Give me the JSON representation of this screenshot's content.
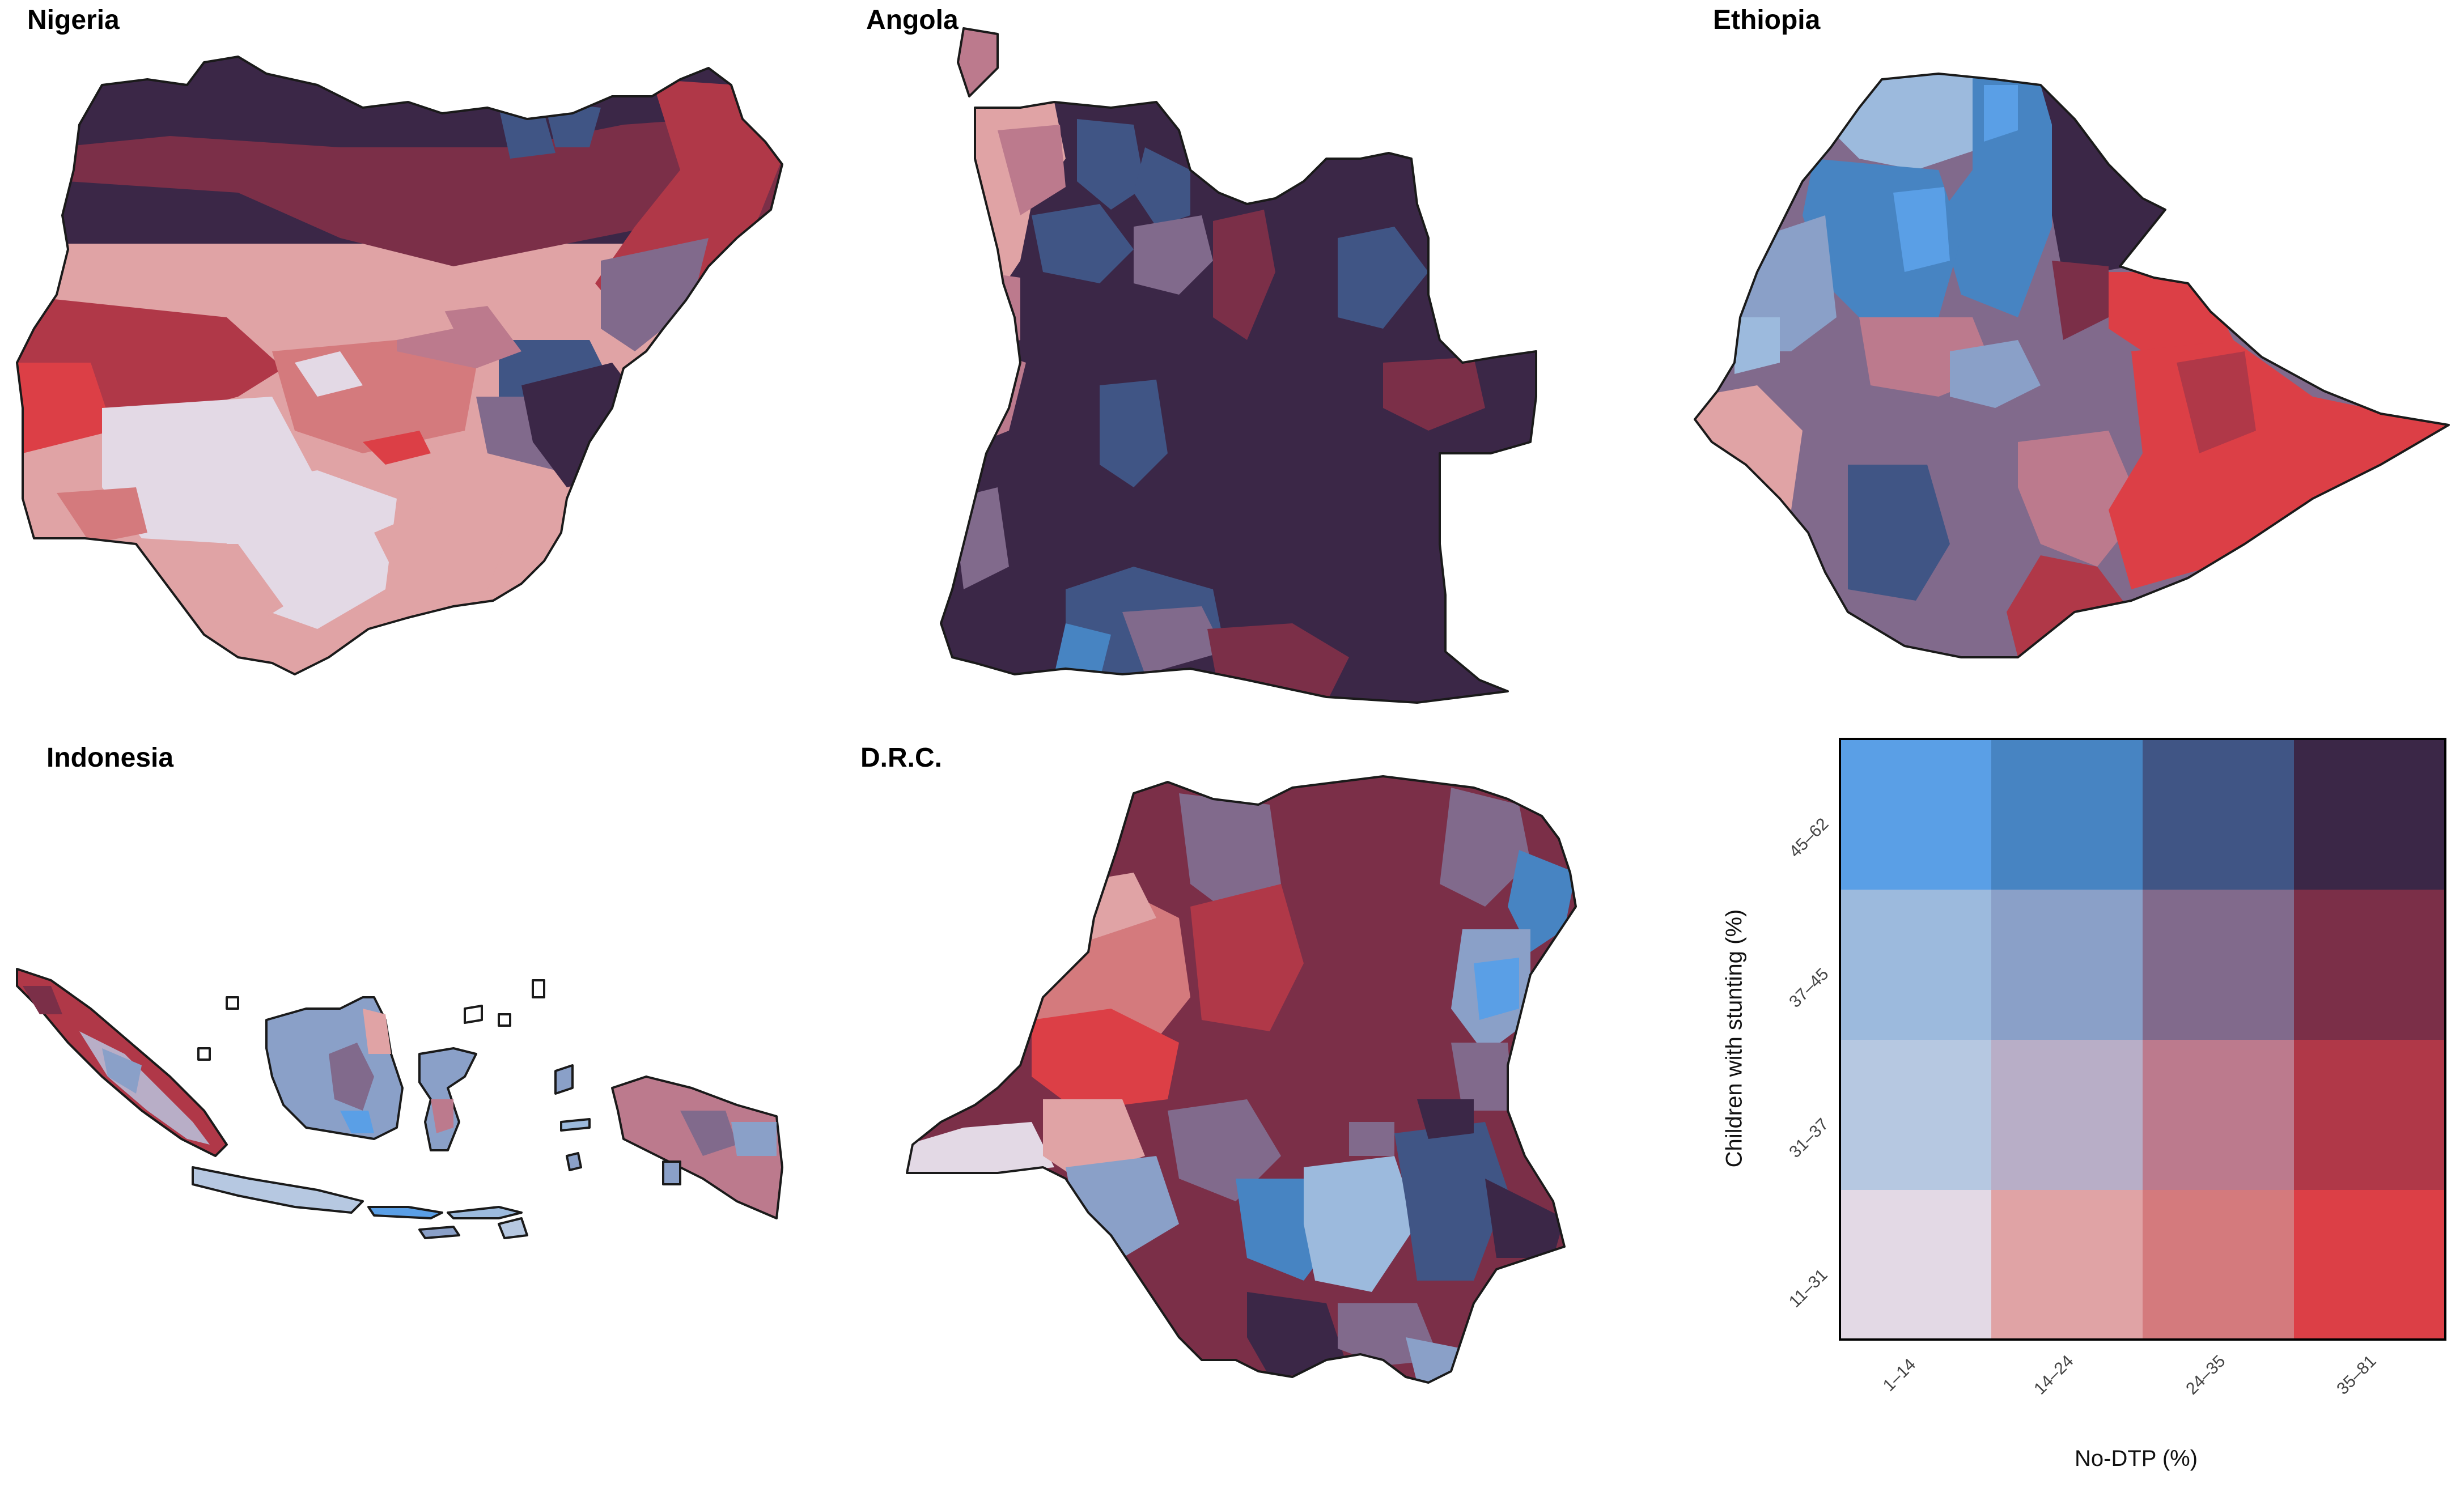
{
  "panels": {
    "nigeria": "Nigeria",
    "angola": "Angola",
    "ethiopia": "Ethiopia",
    "indonesia": "Indonesia",
    "drc": "D.R.C."
  },
  "palette": {
    "c00": "#e3d9e5",
    "c10": "#e0a3a5",
    "c20": "#d47a7d",
    "c30": "#dc3f46",
    "c01": "#b6c8e1",
    "c11": "#b8aec7",
    "c21": "#bc7a8d",
    "c31": "#b03848",
    "c02": "#9cbadd",
    "c12": "#8aa0c8",
    "c22": "#816a8c",
    "c32": "#7b2f48",
    "c03": "#5a9fe6",
    "c13": "#4784c2",
    "c23": "#405585",
    "c33": "#3b2747"
  },
  "legend": {
    "x_title": "No-DTP (%)",
    "y_title": "Children with stunting  (%)",
    "x_ticks": [
      "1–14",
      "14–24",
      "24–35",
      "35–81"
    ],
    "y_ticks": [
      "11–31",
      "31–37",
      "37–45",
      "45–62"
    ]
  }
}
